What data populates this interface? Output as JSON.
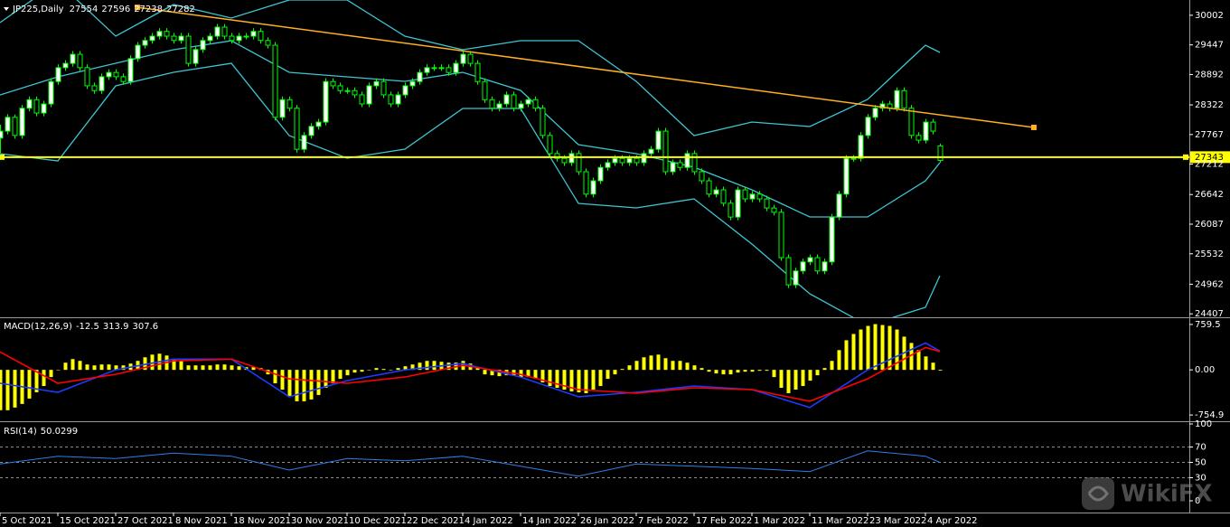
{
  "chart_data": [
    {
      "type": "candlestick",
      "title": "JP225,Daily",
      "xlim": [
        0,
        164.5
      ],
      "ylim": [
        24359,
        30288
      ],
      "yticks": [
        30002,
        29447,
        28892,
        28322,
        27767,
        27212,
        26642,
        26087,
        25532,
        24962,
        24407
      ],
      "color": "#00ff00",
      "up_color": "#ffffff",
      "down_color": "#000000",
      "ohlc": [
        [
          27700,
          27950,
          27420,
          27830
        ],
        [
          27830,
          28150,
          27770,
          28090
        ],
        [
          28090,
          28140,
          27690,
          27750
        ],
        [
          27750,
          28320,
          27690,
          28260
        ],
        [
          28260,
          28480,
          28200,
          28420
        ],
        [
          28420,
          28480,
          28110,
          28170
        ],
        [
          28170,
          28400,
          28110,
          28340
        ],
        [
          28340,
          28820,
          28280,
          28760
        ],
        [
          28760,
          29080,
          28700,
          29020
        ],
        [
          29020,
          29160,
          28960,
          29100
        ],
        [
          29100,
          29330,
          29040,
          29270
        ],
        [
          29270,
          29330,
          28960,
          29020
        ],
        [
          29020,
          29080,
          28620,
          28680
        ],
        [
          28680,
          28740,
          28530,
          28590
        ],
        [
          28590,
          28910,
          28530,
          28850
        ],
        [
          28850,
          28990,
          28790,
          28930
        ],
        [
          28930,
          28990,
          28790,
          28850
        ],
        [
          28850,
          28910,
          28700,
          28760
        ],
        [
          28760,
          29250,
          28700,
          29190
        ],
        [
          29190,
          29500,
          29130,
          29440
        ],
        [
          29440,
          29590,
          29380,
          29530
        ],
        [
          29530,
          29670,
          29470,
          29610
        ],
        [
          29610,
          29760,
          29550,
          29700
        ],
        [
          29700,
          29760,
          29550,
          29610
        ],
        [
          29610,
          29670,
          29470,
          29530
        ],
        [
          29530,
          29670,
          29470,
          29610
        ],
        [
          29610,
          29670,
          29040,
          29100
        ],
        [
          29100,
          29420,
          29040,
          29360
        ],
        [
          29360,
          29590,
          29300,
          29530
        ],
        [
          29530,
          29670,
          29470,
          29610
        ],
        [
          29610,
          29840,
          29550,
          29780
        ],
        [
          29780,
          29840,
          29550,
          29610
        ],
        [
          29610,
          29670,
          29470,
          29530
        ],
        [
          29530,
          29670,
          29470,
          29610
        ],
        [
          29610,
          29670,
          29550,
          29610
        ],
        [
          29610,
          29760,
          29550,
          29700
        ],
        [
          29700,
          29760,
          29470,
          29530
        ],
        [
          29530,
          29590,
          29380,
          29440
        ],
        [
          29440,
          29500,
          28030,
          28090
        ],
        [
          28090,
          28480,
          28030,
          28420
        ],
        [
          28420,
          28480,
          28200,
          28260
        ],
        [
          28260,
          28320,
          27430,
          27490
        ],
        [
          27490,
          27810,
          27430,
          27750
        ],
        [
          27750,
          27980,
          27690,
          27920
        ],
        [
          27920,
          28060,
          27860,
          28000
        ],
        [
          28000,
          28820,
          27940,
          28760
        ],
        [
          28760,
          28820,
          28620,
          28680
        ],
        [
          28680,
          28740,
          28530,
          28590
        ],
        [
          28590,
          28650,
          28530,
          28590
        ],
        [
          28590,
          28650,
          28450,
          28510
        ],
        [
          28510,
          28570,
          28280,
          28340
        ],
        [
          28340,
          28740,
          28280,
          28680
        ],
        [
          28680,
          28820,
          28620,
          28760
        ],
        [
          28760,
          28820,
          28450,
          28510
        ],
        [
          28510,
          28570,
          28280,
          28340
        ],
        [
          28340,
          28570,
          28280,
          28510
        ],
        [
          28510,
          28740,
          28450,
          28680
        ],
        [
          28680,
          28820,
          28620,
          28760
        ],
        [
          28760,
          28990,
          28700,
          28930
        ],
        [
          28930,
          29080,
          28870,
          29020
        ],
        [
          29020,
          29080,
          28960,
          29020
        ],
        [
          29020,
          29080,
          28960,
          29020
        ],
        [
          29020,
          29080,
          28870,
          28930
        ],
        [
          28930,
          29160,
          28870,
          29100
        ],
        [
          29100,
          29330,
          29040,
          29270
        ],
        [
          29270,
          29330,
          29040,
          29100
        ],
        [
          29100,
          29160,
          28700,
          28760
        ],
        [
          28760,
          28820,
          28360,
          28420
        ],
        [
          28420,
          28480,
          28200,
          28260
        ],
        [
          28260,
          28400,
          28200,
          28340
        ],
        [
          28340,
          28570,
          28280,
          28510
        ],
        [
          28510,
          28570,
          28200,
          28260
        ],
        [
          28260,
          28400,
          28200,
          28340
        ],
        [
          28340,
          28480,
          28280,
          28420
        ],
        [
          28420,
          28480,
          28200,
          28260
        ],
        [
          28260,
          28320,
          27690,
          27750
        ],
        [
          27750,
          27810,
          27350,
          27410
        ],
        [
          27410,
          27470,
          27260,
          27320
        ],
        [
          27320,
          27380,
          27180,
          27240
        ],
        [
          27240,
          27470,
          27180,
          27410
        ],
        [
          27410,
          27470,
          27010,
          27070
        ],
        [
          27070,
          27130,
          26590,
          26650
        ],
        [
          26650,
          26960,
          26590,
          26900
        ],
        [
          26900,
          27210,
          26840,
          27150
        ],
        [
          27150,
          27300,
          27090,
          27240
        ],
        [
          27240,
          27380,
          27180,
          27320
        ],
        [
          27320,
          27380,
          27180,
          27240
        ],
        [
          27240,
          27380,
          27180,
          27320
        ],
        [
          27320,
          27380,
          27180,
          27240
        ],
        [
          27240,
          27470,
          27180,
          27410
        ],
        [
          27410,
          27550,
          27350,
          27490
        ],
        [
          27490,
          27890,
          27430,
          27830
        ],
        [
          27830,
          27890,
          27010,
          27070
        ],
        [
          27070,
          27300,
          27010,
          27240
        ],
        [
          27240,
          27300,
          27090,
          27150
        ],
        [
          27150,
          27470,
          27090,
          27410
        ],
        [
          27410,
          27470,
          27010,
          27070
        ],
        [
          27070,
          27130,
          26840,
          26900
        ],
        [
          26900,
          26960,
          26590,
          26650
        ],
        [
          26650,
          26790,
          26590,
          26730
        ],
        [
          26730,
          26790,
          26420,
          26480
        ],
        [
          26480,
          26540,
          26160,
          26220
        ],
        [
          26220,
          26790,
          26160,
          26730
        ],
        [
          26730,
          26790,
          26500,
          26560
        ],
        [
          26560,
          26710,
          26500,
          26650
        ],
        [
          26650,
          26710,
          26500,
          26560
        ],
        [
          26560,
          26620,
          26330,
          26390
        ],
        [
          26390,
          26450,
          26250,
          26310
        ],
        [
          26310,
          26370,
          25400,
          25460
        ],
        [
          25460,
          25520,
          24890,
          24950
        ],
        [
          24950,
          25270,
          24890,
          25210
        ],
        [
          25210,
          25440,
          25150,
          25380
        ],
        [
          25380,
          25520,
          25320,
          25460
        ],
        [
          25460,
          25520,
          25150,
          25210
        ],
        [
          25210,
          25440,
          25150,
          25380
        ],
        [
          25380,
          26280,
          25320,
          26220
        ],
        [
          26220,
          26710,
          26160,
          26650
        ],
        [
          26650,
          27380,
          26590,
          27320
        ],
        [
          27320,
          27380,
          27260,
          27320
        ],
        [
          27320,
          27810,
          27260,
          27750
        ],
        [
          27750,
          28150,
          27690,
          28090
        ],
        [
          28090,
          28320,
          28030,
          28260
        ],
        [
          28260,
          28400,
          28200,
          28340
        ],
        [
          28340,
          28400,
          28200,
          28260
        ],
        [
          28260,
          28650,
          28200,
          28590
        ],
        [
          28590,
          28650,
          28200,
          28260
        ],
        [
          28260,
          28320,
          27690,
          27750
        ],
        [
          27750,
          27810,
          27600,
          27660
        ],
        [
          27660,
          28060,
          27600,
          28000
        ],
        [
          28000,
          28060,
          27770,
          27830
        ],
        [
          27554,
          27596,
          27238,
          27282
        ]
      ],
      "bands": {
        "x": [
          0,
          8,
          16,
          24,
          32,
          40,
          48,
          56,
          64,
          72,
          80,
          88,
          96,
          104,
          112,
          120,
          128,
          130
        ],
        "color": "#3ec5d2",
        "series": [
          {
            "values": [
              29865,
              30627,
              29610,
              30203,
              29949,
              30288,
              30288,
              29610,
              29356,
              29526,
              29526,
              28763,
              27747,
              28001,
              27916,
              28425,
              29441,
              29306
            ]
          },
          {
            "values": [
              28509,
              28848,
              29102,
              29356,
              29526,
              28933,
              28848,
              28763,
              28933,
              28594,
              27578,
              27408,
              27154,
              26731,
              26222,
              26222,
              26900,
              27239
            ]
          },
          {
            "values": [
              27408,
              27273,
              28679,
              28933,
              29102,
              27747,
              27324,
              27493,
              28255,
              28255,
              26477,
              26392,
              26561,
              25714,
              24782,
              24190,
              24528,
              25121
            ]
          }
        ]
      },
      "trendline": {
        "x": [
          19,
          143
        ],
        "values": [
          30150,
          27900
        ],
        "color": "#ffb020"
      },
      "hline": {
        "value": 27343,
        "color": "#ffff00"
      }
    },
    {
      "type": "macd",
      "title": "MACD(12,26,9)",
      "xlim": [
        0,
        164.5
      ],
      "ylim": [
        -844,
        864
      ],
      "yticks": [
        759.5,
        {
          "value": 0,
          "label": "0.00"
        },
        -754.9
      ],
      "color": "#ffff00",
      "histogram": [
        -675,
        -675,
        -630,
        -570,
        -480,
        -375,
        -270,
        -120,
        0,
        120,
        180,
        150,
        90,
        75,
        90,
        90,
        75,
        75,
        105,
        150,
        210,
        255,
        270,
        240,
        180,
        150,
        75,
        75,
        75,
        75,
        90,
        90,
        75,
        60,
        45,
        45,
        30,
        -75,
        -225,
        -330,
        -450,
        -525,
        -525,
        -495,
        -420,
        -300,
        -225,
        -150,
        -90,
        -45,
        -30,
        0,
        30,
        15,
        0,
        30,
        60,
        90,
        120,
        150,
        150,
        135,
        120,
        120,
        150,
        105,
        30,
        -75,
        -90,
        -105,
        -90,
        -90,
        -120,
        -120,
        -150,
        -210,
        -270,
        -300,
        -330,
        -360,
        -375,
        -390,
        -330,
        -270,
        -150,
        -75,
        15,
        75,
        150,
        210,
        240,
        255,
        195,
        150,
        150,
        120,
        75,
        30,
        -30,
        -60,
        -75,
        -75,
        -45,
        -30,
        -30,
        -15,
        -15,
        -120,
        -300,
        -390,
        -330,
        -270,
        -180,
        -90,
        30,
        150,
        330,
        495,
        600,
        675,
        735,
        765,
        750,
        735,
        675,
        555,
        450,
        330,
        225,
        120,
        -12.5
      ],
      "lines": {
        "x": [
          0,
          8,
          16,
          24,
          32,
          40,
          48,
          56,
          64,
          72,
          80,
          88,
          96,
          104,
          112,
          120,
          128,
          130
        ],
        "series": [
          {
            "color": "#1a3cff",
            "values": [
              -225,
              -375,
              0,
              180,
              180,
              -450,
              -180,
              0,
              105,
              -120,
              -450,
              -375,
              -270,
              -330,
              -630,
              0,
              450,
              313.9
            ]
          },
          {
            "color": "#ff0000",
            "values": [
              300,
              -225,
              -75,
              150,
              180,
              -150,
              -225,
              -120,
              75,
              -75,
              -330,
              -390,
              -300,
              -330,
              -525,
              -150,
              375,
              307.6
            ]
          }
        ]
      }
    },
    {
      "type": "rsi",
      "title": "RSI(14)",
      "xlim": [
        0,
        164.5
      ],
      "ylim": [
        0,
        100
      ],
      "yticks": [
        100,
        70,
        50,
        30,
        0
      ],
      "levels": [
        70,
        50,
        30
      ],
      "color": "#2f7fe8",
      "x": [
        0,
        8,
        16,
        24,
        32,
        40,
        48,
        56,
        64,
        72,
        80,
        88,
        96,
        104,
        112,
        120,
        128,
        130
      ],
      "values": [
        48,
        58,
        55,
        62,
        58,
        40,
        55,
        52,
        58,
        45,
        32,
        48,
        45,
        42,
        38,
        65,
        58,
        50.0299
      ],
      "xticks": [
        {
          "value": 0,
          "label": "5 Oct 2021"
        },
        {
          "value": 8,
          "label": "15 Oct 2021"
        },
        {
          "value": 16,
          "label": "27 Oct 2021"
        },
        {
          "value": 24,
          "label": "8 Nov 2021"
        },
        {
          "value": 32,
          "label": "18 Nov 2021"
        },
        {
          "value": 40,
          "label": "30 Nov 2021"
        },
        {
          "value": 48,
          "label": "10 Dec 2021"
        },
        {
          "value": 56,
          "label": "22 Dec 2021"
        },
        {
          "value": 64,
          "label": "4 Jan 2022"
        },
        {
          "value": 72,
          "label": "14 Jan 2022"
        },
        {
          "value": 80,
          "label": "26 Jan 2022"
        },
        {
          "value": 88,
          "label": "7 Feb 2022"
        },
        {
          "value": 96,
          "label": "17 Feb 2022"
        },
        {
          "value": 104,
          "label": "1 Mar 2022"
        },
        {
          "value": 112,
          "label": "11 Mar 2022"
        },
        {
          "value": 120,
          "label": "23 Mar 2022"
        },
        {
          "value": 128,
          "label": "4 Apr 2022"
        }
      ]
    }
  ],
  "watermark": "WikiFX"
}
